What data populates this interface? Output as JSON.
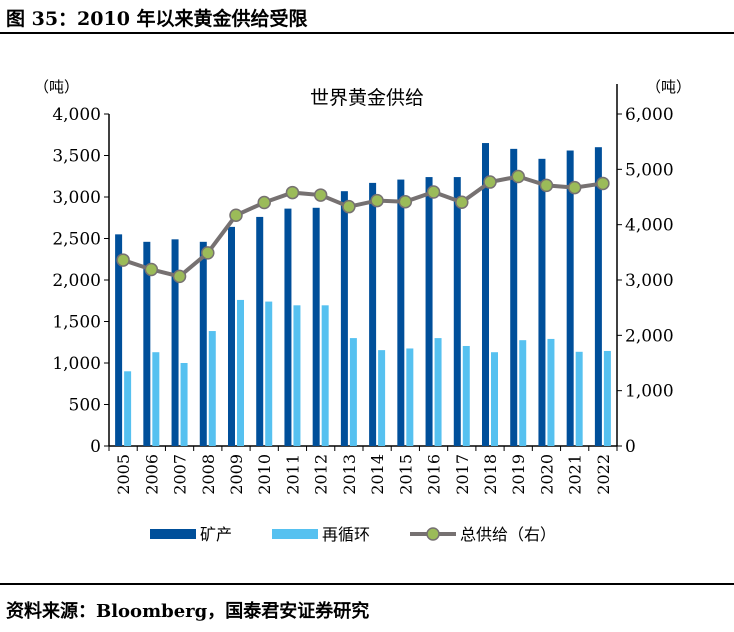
{
  "header": {
    "title": "图 35：2010 年以来黄金供给受限"
  },
  "footer": {
    "source": "资料来源：Bloomberg，国泰君安证券研究"
  },
  "chart_data": {
    "type": "bar+line",
    "title": "世界黄金供给",
    "ylabel_left": "（吨）",
    "ylabel_right": "（吨）",
    "ylim_left": [
      0,
      4000
    ],
    "ylim_right": [
      0,
      6000
    ],
    "yticks_left": [
      "0",
      "500",
      "1,000",
      "1,500",
      "2,000",
      "2,500",
      "3,000",
      "3,500",
      "4,000"
    ],
    "yticks_right": [
      "0",
      "1,000",
      "2,000",
      "3,000",
      "4,000",
      "5,000",
      "6,000"
    ],
    "categories": [
      "2005",
      "2006",
      "2007",
      "2008",
      "2009",
      "2010",
      "2011",
      "2012",
      "2013",
      "2014",
      "2015",
      "2016",
      "2017",
      "2018",
      "2019",
      "2020",
      "2021",
      "2022"
    ],
    "series": [
      {
        "name": "矿产",
        "type": "bar",
        "axis": "left",
        "color": "#004F9A",
        "values": [
          2550,
          2460,
          2490,
          2460,
          2640,
          2760,
          2860,
          2870,
          3070,
          3170,
          3210,
          3240,
          3240,
          3650,
          3580,
          3460,
          3560,
          3600
        ]
      },
      {
        "name": "再循环",
        "type": "bar",
        "axis": "left",
        "color": "#56C1F0",
        "values": [
          900,
          1130,
          1000,
          1385,
          1760,
          1740,
          1695,
          1695,
          1300,
          1155,
          1175,
          1300,
          1205,
          1130,
          1275,
          1290,
          1135,
          1145
        ]
      },
      {
        "name": "总供给（右）",
        "type": "line",
        "axis": "right",
        "color": "#767171",
        "marker_color": "#9BBB59",
        "values": [
          3360,
          3190,
          3065,
          3490,
          4170,
          4400,
          4580,
          4535,
          4325,
          4435,
          4415,
          4590,
          4405,
          4770,
          4870,
          4710,
          4670,
          4745
        ]
      }
    ],
    "legend": "bottom",
    "grid": false
  }
}
